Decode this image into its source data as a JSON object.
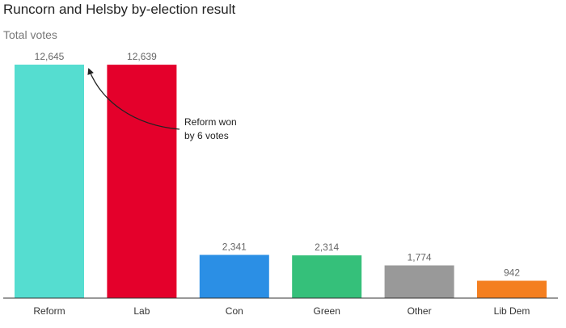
{
  "title": "Runcorn and Helsby by-election result",
  "subtitle": "Total votes",
  "annotation": [
    "Reform won",
    "by 6 votes"
  ],
  "chart_data": {
    "type": "bar",
    "categories": [
      "Reform",
      "Lab",
      "Con",
      "Green",
      "Other",
      "Lib Dem"
    ],
    "values": [
      12645,
      12639,
      2341,
      2314,
      1774,
      942
    ],
    "value_labels": [
      "12,645",
      "12,639",
      "2,341",
      "2,314",
      "1,774",
      "942"
    ],
    "colors": [
      "#55ddd0",
      "#e4002b",
      "#2b8fe5",
      "#35c07a",
      "#999999",
      "#f47f20"
    ],
    "ylim": [
      0,
      12645
    ],
    "grid": false,
    "legend": "none"
  }
}
